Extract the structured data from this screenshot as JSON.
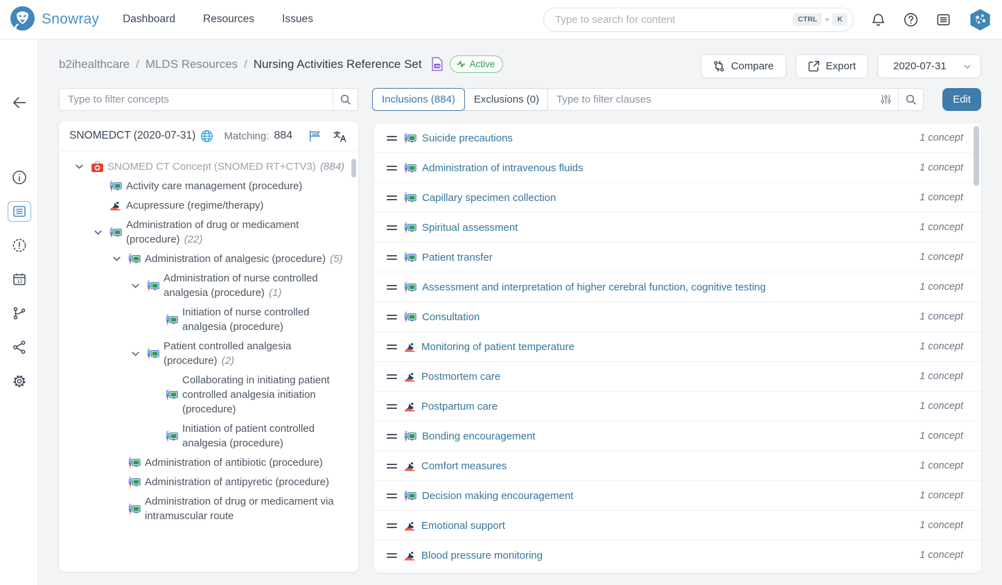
{
  "header": {
    "brand": "Snowray",
    "nav": [
      "Dashboard",
      "Resources",
      "Issues"
    ],
    "search": {
      "placeholder": "Type to search for content",
      "keys": [
        "CTRL",
        "K"
      ],
      "key_sep": "+"
    },
    "icons": [
      "bell-icon",
      "help-icon",
      "news-icon",
      "avatar"
    ]
  },
  "sidebar": {
    "items": [
      {
        "label": "back",
        "icon": "arrow-left-icon"
      },
      {
        "label": "info",
        "icon": "info-icon"
      },
      {
        "label": "resource-content",
        "icon": "document-icon",
        "active": true
      },
      {
        "label": "issues",
        "icon": "alert-icon"
      },
      {
        "label": "versions",
        "icon": "calendar-icon"
      },
      {
        "label": "branches",
        "icon": "branch-icon"
      },
      {
        "label": "share",
        "icon": "share-icon"
      },
      {
        "label": "settings",
        "icon": "gear-icon"
      }
    ]
  },
  "breadcrumb": {
    "items": [
      "b2ihealthcare",
      "MLDS Resources",
      "Nursing Activities Reference Set"
    ],
    "separator": "/",
    "vs_badge": "vs",
    "status": "Active"
  },
  "toolbar": {
    "compare_label": "Compare",
    "export_label": "Export",
    "version": "2020-07-31",
    "edit_label": "Edit"
  },
  "filters": {
    "concepts_placeholder": "Type to filter concepts",
    "clauses_placeholder": "Type to filter clauses"
  },
  "tabs": [
    {
      "label": "Inclusions (884)",
      "active": true
    },
    {
      "label": "Exclusions (0)",
      "active": false
    }
  ],
  "tree_panel": {
    "codesystem": "SNOMEDCT (2020-07-31)",
    "matching_label": "Matching:",
    "matching_count": "884",
    "nodes": [
      {
        "level": 0,
        "expand": true,
        "icon": "firstaid",
        "label": "SNOMED CT Concept (SNOMED RT+CTV3)",
        "count": "(884)",
        "muted": true
      },
      {
        "level": 1,
        "expand": false,
        "icon": "procedure",
        "label": "Activity care management (procedure)"
      },
      {
        "level": 1,
        "expand": false,
        "icon": "regime",
        "label": "Acupressure (regime/therapy)"
      },
      {
        "level": 1,
        "expand": true,
        "icon": "procedure",
        "label": "Administration of drug or medicament (procedure)",
        "count": "(22)"
      },
      {
        "level": 2,
        "expand": true,
        "icon": "procedure",
        "label": "Administration of analgesic (procedure)",
        "count": "(5)"
      },
      {
        "level": 3,
        "expand": true,
        "icon": "procedure",
        "label": "Administration of nurse controlled analgesia (procedure)",
        "count": "(1)"
      },
      {
        "level": 4,
        "expand": false,
        "icon": "procedure",
        "label": "Initiation of nurse controlled analgesia (procedure)"
      },
      {
        "level": 3,
        "expand": true,
        "icon": "procedure",
        "label": "Patient controlled analgesia (procedure)",
        "count": "(2)"
      },
      {
        "level": 4,
        "expand": false,
        "icon": "procedure",
        "label": "Collaborating in initiating patient controlled analgesia initiation (procedure)"
      },
      {
        "level": 4,
        "expand": false,
        "icon": "procedure",
        "label": "Initiation of patient controlled analgesia (procedure)"
      },
      {
        "level": 2,
        "expand": false,
        "icon": "procedure",
        "label": "Administration of antibiotic (procedure)"
      },
      {
        "level": 2,
        "expand": false,
        "icon": "procedure",
        "label": "Administration of antipyretic (procedure)"
      },
      {
        "level": 2,
        "expand": false,
        "icon": "procedure",
        "label": "Administration of drug or medicament via intramuscular route"
      }
    ]
  },
  "clauses_panel": {
    "rows": [
      {
        "icon": "procedure",
        "label": "Suicide precautions",
        "count": "1 concept"
      },
      {
        "icon": "procedure",
        "label": "Administration of intravenous fluids",
        "count": "1 concept"
      },
      {
        "icon": "procedure",
        "label": "Capillary specimen collection",
        "count": "1 concept"
      },
      {
        "icon": "procedure",
        "label": "Spiritual assessment",
        "count": "1 concept"
      },
      {
        "icon": "procedure",
        "label": "Patient transfer",
        "count": "1 concept"
      },
      {
        "icon": "procedure",
        "label": "Assessment and interpretation of higher cerebral function, cognitive testing",
        "count": "1 concept"
      },
      {
        "icon": "procedure",
        "label": "Consultation",
        "count": "1 concept"
      },
      {
        "icon": "regime",
        "label": "Monitoring of patient temperature",
        "count": "1 concept"
      },
      {
        "icon": "regime",
        "label": "Postmortem care",
        "count": "1 concept"
      },
      {
        "icon": "regime",
        "label": "Postpartum care",
        "count": "1 concept"
      },
      {
        "icon": "procedure",
        "label": "Bonding encouragement",
        "count": "1 concept"
      },
      {
        "icon": "regime",
        "label": "Comfort measures",
        "count": "1 concept"
      },
      {
        "icon": "procedure",
        "label": "Decision making encouragement",
        "count": "1 concept"
      },
      {
        "icon": "regime",
        "label": "Emotional support",
        "count": "1 concept"
      },
      {
        "icon": "regime",
        "label": "Blood pressure monitoring",
        "count": "1 concept"
      }
    ]
  },
  "colors": {
    "accent": "#4a90c2",
    "edit_button": "#3e7cab",
    "active_green": "#2e9e4e",
    "vs_purple": "#8a63d2",
    "clause_text": "#35759b"
  }
}
